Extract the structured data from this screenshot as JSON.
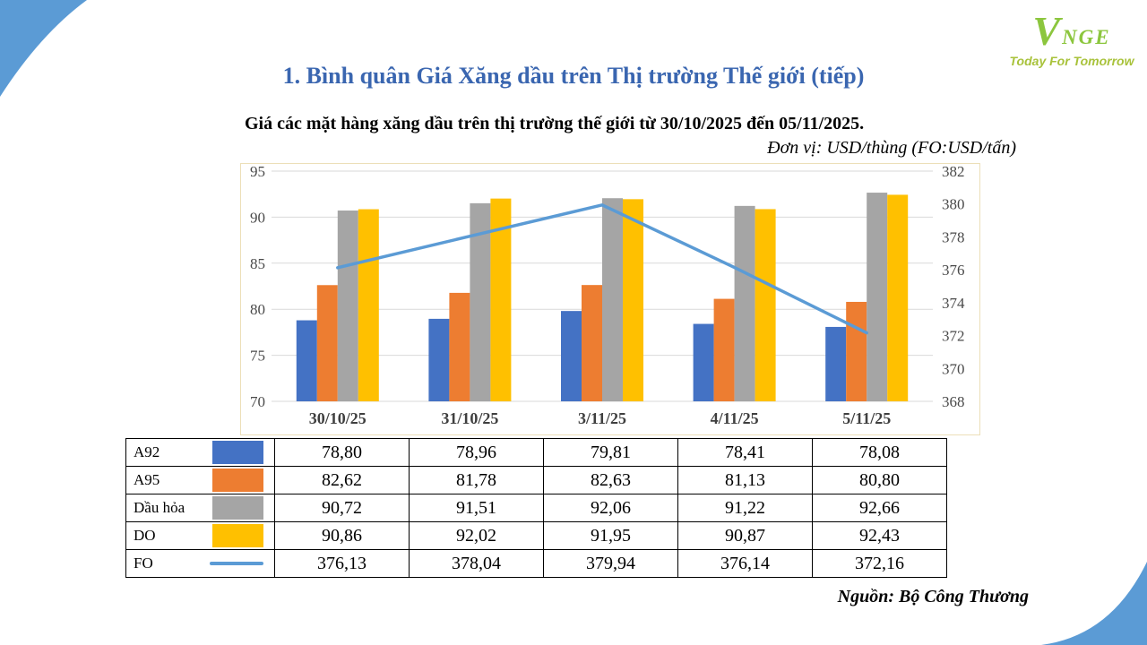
{
  "slide": {
    "title": "1. Bình quân Giá Xăng dầu trên Thị trường Thế giới (tiếp)",
    "title_color": "#3a66b0",
    "subtitle": "Giá các mặt hàng xăng dầu trên thị trường thế giới từ 30/10/2025 đến 05/11/2025.",
    "unit_note": "Đơn vị: USD/thùng (FO:USD/tấn)",
    "source": "Nguồn: Bộ Công Thương"
  },
  "logo": {
    "v": "V",
    "name": "NGE",
    "tagline": "Today For Tomorrow",
    "name_color": "#8cc63e",
    "tagline_color": "#a8c23a"
  },
  "decor": {
    "swoosh_color": "#5b9bd5"
  },
  "chart_data": {
    "type": "bar",
    "subtype": "combo bar+line, dual axis",
    "categories": [
      "30/10/25",
      "31/10/25",
      "3/11/25",
      "4/11/25",
      "5/11/25"
    ],
    "series": [
      {
        "name": "A92",
        "type": "bar",
        "axis": "left",
        "color": "#4472c4",
        "values": [
          78.8,
          78.96,
          79.81,
          78.41,
          78.08
        ]
      },
      {
        "name": "A95",
        "type": "bar",
        "axis": "left",
        "color": "#ed7d31",
        "values": [
          82.62,
          81.78,
          82.63,
          81.13,
          80.8
        ]
      },
      {
        "name": "Dầu hỏa",
        "type": "bar",
        "axis": "left",
        "color": "#a5a5a5",
        "values": [
          90.72,
          91.51,
          92.06,
          91.22,
          92.66
        ]
      },
      {
        "name": "DO",
        "type": "bar",
        "axis": "left",
        "color": "#ffc000",
        "values": [
          90.86,
          92.02,
          91.95,
          90.87,
          92.43
        ]
      },
      {
        "name": "FO",
        "type": "line",
        "axis": "right",
        "color": "#5b9bd5",
        "values": [
          376.13,
          378.04,
          379.94,
          376.14,
          372.16
        ]
      }
    ],
    "left_axis": {
      "min": 70,
      "max": 95,
      "step": 5,
      "ticks": [
        70,
        75,
        80,
        85,
        90,
        95
      ]
    },
    "right_axis": {
      "min": 368,
      "max": 382,
      "step": 2,
      "ticks": [
        368,
        370,
        372,
        374,
        376,
        378,
        380,
        382
      ]
    },
    "grid": true,
    "gridline_color": "#d9d9d9",
    "axis_label_color": "#4a4a4a",
    "legend_position": "none (table below acts as legend)",
    "title": "",
    "xlabel": "",
    "ylabel": ""
  },
  "table": {
    "rows": [
      {
        "label": "A92",
        "swatch": "bar",
        "color": "#4472c4",
        "values": [
          "78,80",
          "78,96",
          "79,81",
          "78,41",
          "78,08"
        ]
      },
      {
        "label": "A95",
        "swatch": "bar",
        "color": "#ed7d31",
        "values": [
          "82,62",
          "81,78",
          "82,63",
          "81,13",
          "80,80"
        ]
      },
      {
        "label": "Dầu hỏa",
        "swatch": "bar",
        "color": "#a5a5a5",
        "values": [
          "90,72",
          "91,51",
          "92,06",
          "91,22",
          "92,66"
        ]
      },
      {
        "label": "DO",
        "swatch": "bar",
        "color": "#ffc000",
        "values": [
          "90,86",
          "92,02",
          "91,95",
          "90,87",
          "92,43"
        ]
      },
      {
        "label": "FO",
        "swatch": "line",
        "color": "#5b9bd5",
        "values": [
          "376,13",
          "378,04",
          "379,94",
          "376,14",
          "372,16"
        ]
      }
    ]
  }
}
